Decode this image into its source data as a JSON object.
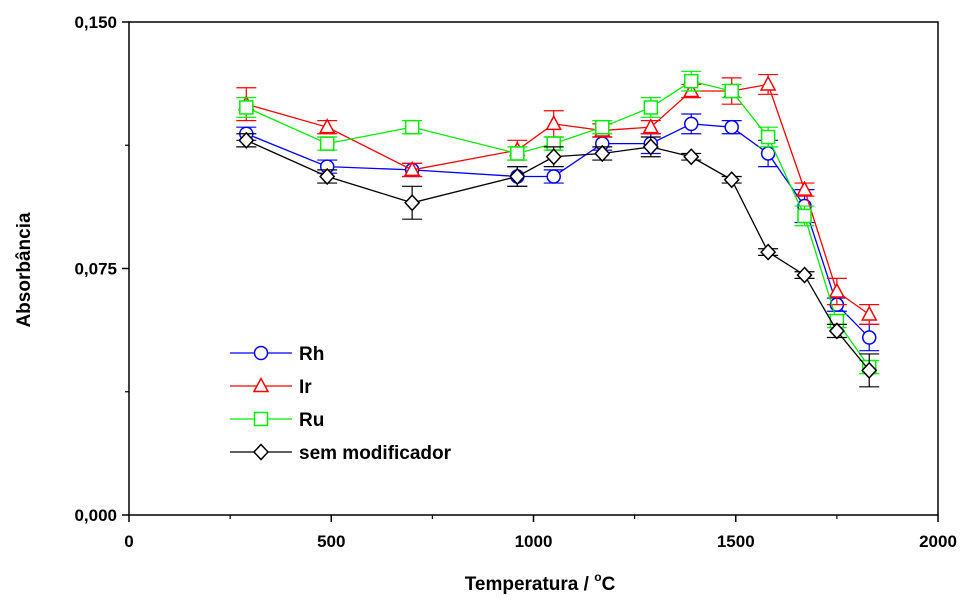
{
  "chart_data": {
    "type": "line",
    "title": "",
    "xlabel": "Temperatura / ",
    "xlabel_unit_sup": "o",
    "xlabel_unit": "C",
    "ylabel": "Absorbância",
    "xlim": [
      0,
      2000
    ],
    "ylim": [
      0,
      0.15
    ],
    "x_ticks": [
      0,
      500,
      1000,
      1500,
      2000
    ],
    "x_tick_labels": [
      "0",
      "500",
      "1000",
      "1500",
      "2000"
    ],
    "y_ticks": [
      0,
      0.075,
      0.15
    ],
    "y_tick_labels": [
      "0,000",
      "0,075",
      "0,150"
    ],
    "grid": false,
    "legend_position": "bottom-left",
    "series": [
      {
        "name": "Rh",
        "color": "#0000ff",
        "marker": "circle",
        "x": [
          290,
          490,
          700,
          960,
          1050,
          1170,
          1290,
          1390,
          1490,
          1580,
          1670,
          1750,
          1830
        ],
        "y": [
          0.116,
          0.106,
          0.105,
          0.103,
          0.103,
          0.113,
          0.113,
          0.119,
          0.118,
          0.11,
          0.094,
          0.064,
          0.054
        ],
        "err": [
          0.002,
          0.002,
          0.002,
          0.003,
          0.002,
          0.002,
          0.003,
          0.003,
          0.002,
          0.004,
          0.005,
          0.002,
          0.004
        ]
      },
      {
        "name": "Ir",
        "color": "#ff0000",
        "marker": "triangle",
        "x": [
          290,
          490,
          700,
          960,
          1050,
          1170,
          1290,
          1390,
          1490,
          1580,
          1670,
          1750,
          1830
        ],
        "y": [
          0.125,
          0.118,
          0.105,
          0.111,
          0.119,
          0.117,
          0.118,
          0.129,
          0.129,
          0.131,
          0.099,
          0.068,
          0.061
        ],
        "err": [
          0.005,
          0.002,
          0.002,
          0.003,
          0.004,
          0.002,
          0.002,
          0.002,
          0.004,
          0.003,
          0.002,
          0.004,
          0.003
        ]
      },
      {
        "name": "Ru",
        "color": "#00ee00",
        "marker": "square",
        "x": [
          290,
          490,
          700,
          960,
          1050,
          1170,
          1290,
          1390,
          1490,
          1580,
          1670,
          1750,
          1830
        ],
        "y": [
          0.124,
          0.113,
          0.118,
          0.11,
          0.113,
          0.118,
          0.124,
          0.132,
          0.129,
          0.115,
          0.091,
          0.059,
          0.045
        ],
        "err": [
          0.003,
          0.002,
          0.002,
          0.002,
          0.002,
          0.002,
          0.003,
          0.003,
          0.002,
          0.003,
          0.003,
          0.002,
          0.002
        ]
      },
      {
        "name": "sem modificador",
        "color": "#000000",
        "marker": "diamond",
        "x": [
          290,
          490,
          700,
          960,
          1050,
          1170,
          1290,
          1390,
          1490,
          1580,
          1670,
          1750,
          1830
        ],
        "y": [
          0.114,
          0.103,
          0.095,
          0.103,
          0.109,
          0.11,
          0.112,
          0.109,
          0.102,
          0.08,
          0.073,
          0.056,
          0.044
        ],
        "err": [
          0.002,
          0.002,
          0.005,
          0.003,
          0.003,
          0.002,
          0.003,
          0.001,
          0.001,
          0.001,
          0.001,
          0.002,
          0.005
        ]
      }
    ]
  }
}
